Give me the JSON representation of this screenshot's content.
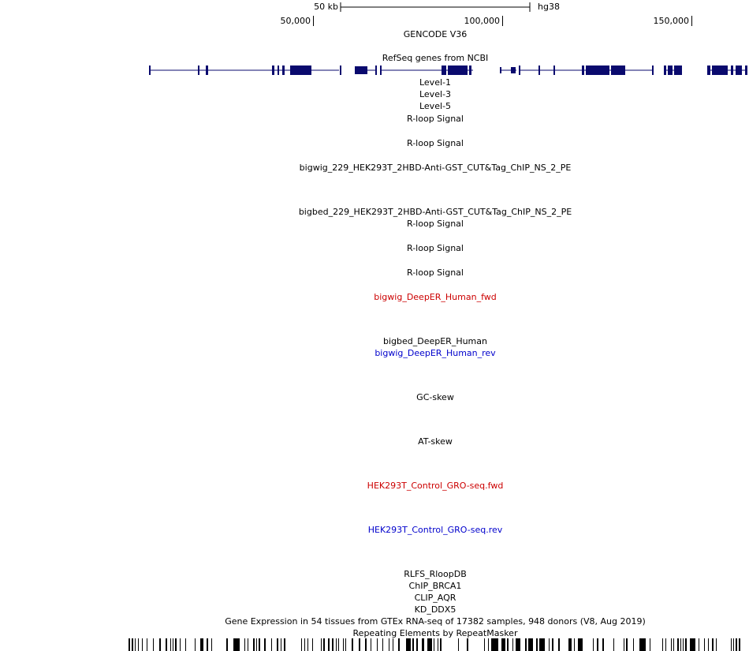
{
  "ruler": {
    "scale_label": "50 kb",
    "assembly": "hg38",
    "positions": [
      "50,000",
      "100,000",
      "150,000"
    ]
  },
  "tracks": [
    {
      "label": "GENCODE V36"
    },
    {
      "label": "RefSeq genes from NCBI"
    },
    {
      "label": "Level-1"
    },
    {
      "label": "Level-3"
    },
    {
      "label": "Level-5"
    },
    {
      "label": "R-loop Signal"
    },
    {
      "label": "R-loop Signal"
    },
    {
      "label": "bigwig_229_HEK293T_2HBD-Anti-GST_CUT&Tag_ChIP_NS_2_PE"
    },
    {
      "label": "bigbed_229_HEK293T_2HBD-Anti-GST_CUT&Tag_ChIP_NS_2_PE"
    },
    {
      "label": "R-loop Signal"
    },
    {
      "label": "R-loop Signal"
    },
    {
      "label": "R-loop Signal"
    },
    {
      "label": "bigwig_DeepER_Human_fwd",
      "color": "#cc0000"
    },
    {
      "label": "bigbed_DeepER_Human"
    },
    {
      "label": "bigwig_DeepER_Human_rev",
      "color": "#0000cc"
    },
    {
      "label": "GC-skew"
    },
    {
      "label": "AT-skew"
    },
    {
      "label": "HEK293T_Control_GRO-seq.fwd",
      "color": "#cc0000"
    },
    {
      "label": "HEK293T_Control_GRO-seq.rev",
      "color": "#0000cc"
    },
    {
      "label": "RLFS_RloopDB"
    },
    {
      "label": "ChIP_BRCA1"
    },
    {
      "label": "CLIP_AQR"
    },
    {
      "label": "KD_DDX5"
    },
    {
      "label": "Gene Expression in 54 tissues from GTEx RNA-seq of 17382 samples, 948 donors (V8, Aug 2019)"
    },
    {
      "label": "Repeating Elements by RepeatMasker"
    }
  ]
}
